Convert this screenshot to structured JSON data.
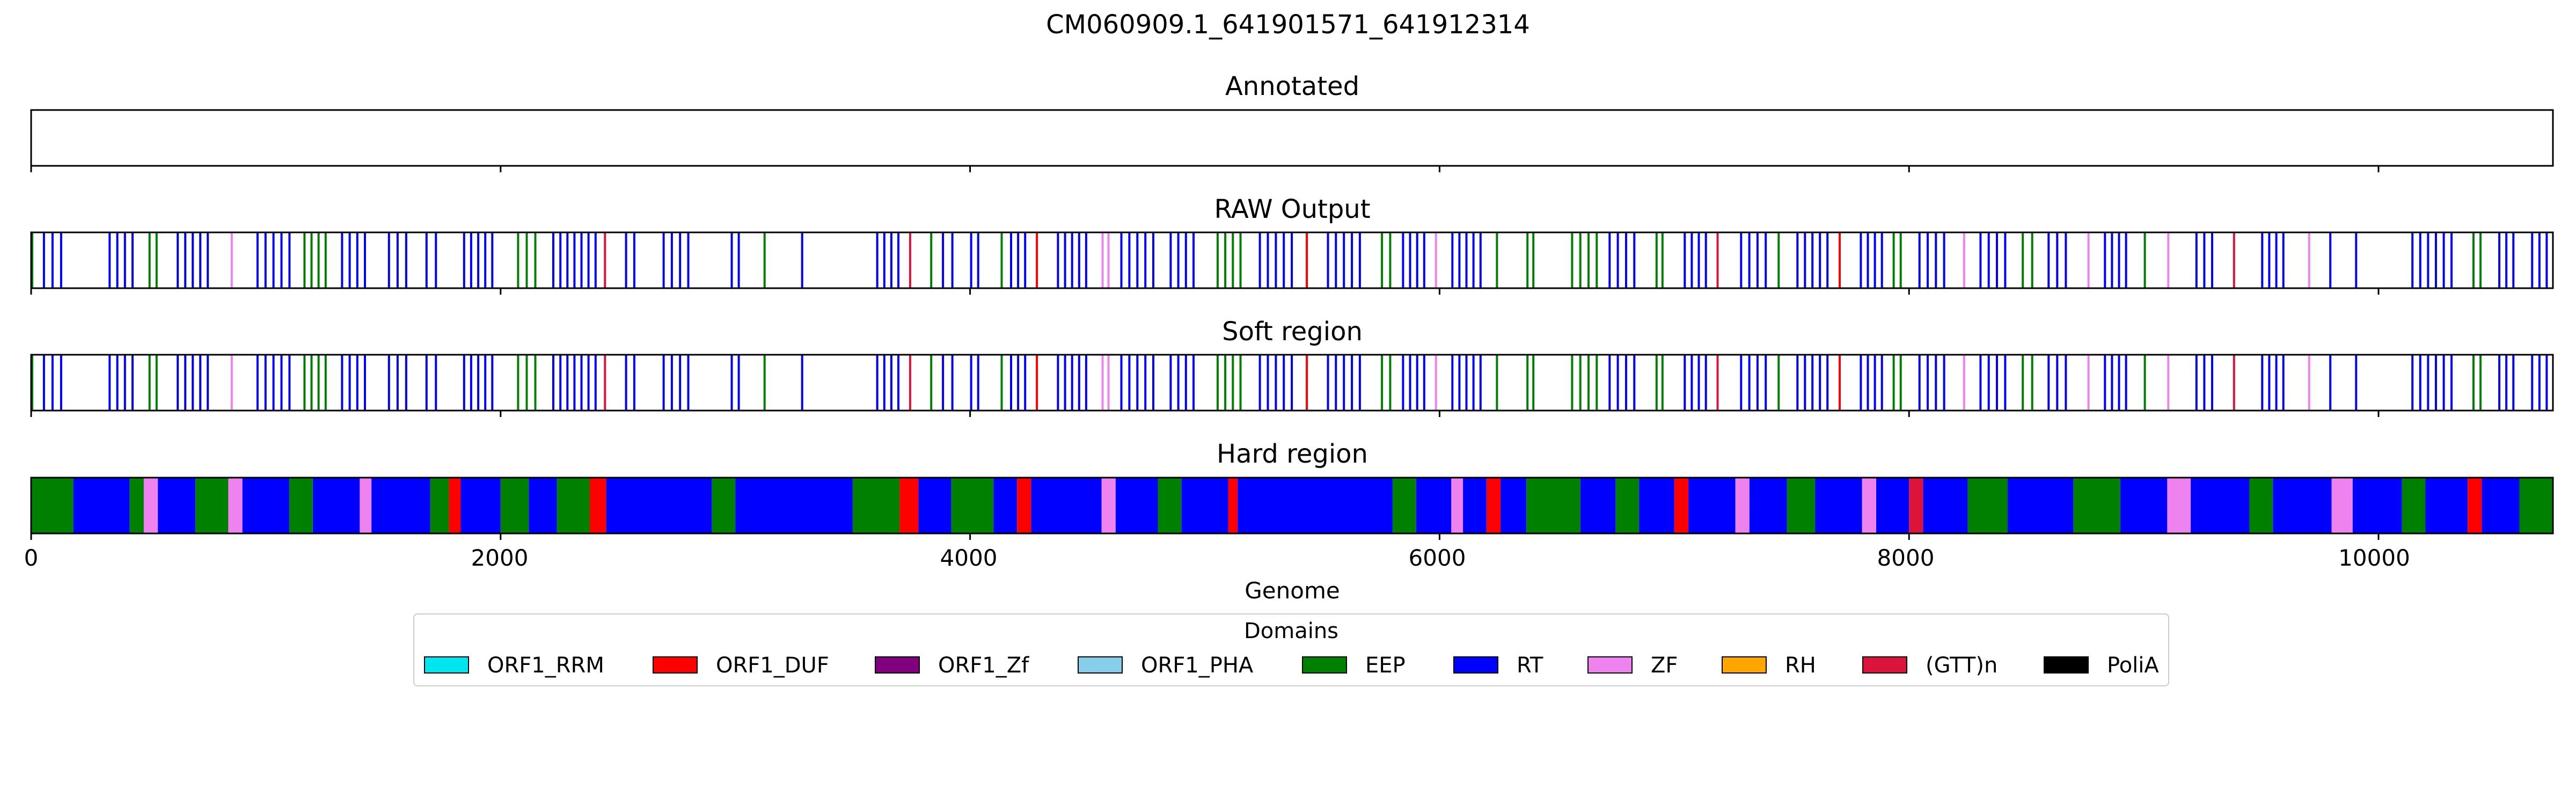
{
  "figure": {
    "title": "CM060909.1_641901571_641912314"
  },
  "colors": {
    "ORF1_RRM": "#00e5ee",
    "ORF1_DUF": "#ff0000",
    "ORF1_Zf": "#800080",
    "ORF1_PHA": "#87ceeb",
    "EEP": "#008000",
    "RT": "#0000ff",
    "ZF": "#ee82ee",
    "RH": "#ffa500",
    "(GTT)n": "#dc143c",
    "PoliA": "#000000"
  },
  "chart_data": {
    "type": "genome-track",
    "xlabel": "Genome",
    "xlim": [
      0,
      10743
    ],
    "xticks": [
      0,
      2000,
      4000,
      6000,
      8000,
      10000
    ],
    "panels": [
      {
        "title": "Annotated",
        "style": "sparse",
        "segments": []
      },
      {
        "title": "RAW Output",
        "style": "sparse",
        "segments": [
          [
            0,
            30,
            "EEP"
          ],
          [
            50,
            160,
            "RT"
          ],
          [
            330,
            460,
            "RT"
          ],
          [
            500,
            560,
            "EEP"
          ],
          [
            620,
            780,
            "RT"
          ],
          [
            850,
            880,
            "ZF"
          ],
          [
            960,
            1130,
            "RT"
          ],
          [
            1160,
            1280,
            "EEP"
          ],
          [
            1320,
            1450,
            "RT"
          ],
          [
            1520,
            1630,
            "RT"
          ],
          [
            1680,
            1760,
            "RT"
          ],
          [
            1840,
            1990,
            "RT"
          ],
          [
            2070,
            2180,
            "EEP"
          ],
          [
            2220,
            2430,
            "RT"
          ],
          [
            2440,
            2470,
            "(GTT)n"
          ],
          [
            2530,
            2600,
            "RT"
          ],
          [
            2690,
            2830,
            "RT"
          ],
          [
            2980,
            3040,
            "RT"
          ],
          [
            3120,
            3160,
            "EEP"
          ],
          [
            3280,
            3320,
            "RT"
          ],
          [
            3600,
            3720,
            "RT"
          ],
          [
            3740,
            3780,
            "(GTT)n"
          ],
          [
            3830,
            3870,
            "EEP"
          ],
          [
            3880,
            3960,
            "RT"
          ],
          [
            4000,
            4060,
            "RT"
          ],
          [
            4130,
            4160,
            "EEP"
          ],
          [
            4170,
            4260,
            "RT"
          ],
          [
            4280,
            4320,
            "ORF1_DUF"
          ],
          [
            4370,
            4520,
            "RT"
          ],
          [
            4560,
            4610,
            "ZF"
          ],
          [
            4640,
            4810,
            "RT"
          ],
          [
            4850,
            4980,
            "RT"
          ],
          [
            5050,
            5180,
            "EEP"
          ],
          [
            5230,
            5400,
            "RT"
          ],
          [
            5430,
            5470,
            "ORF1_DUF"
          ],
          [
            5520,
            5690,
            "RT"
          ],
          [
            5750,
            5820,
            "EEP"
          ],
          [
            5840,
            5960,
            "RT"
          ],
          [
            5980,
            6020,
            "ZF"
          ],
          [
            6050,
            6200,
            "RT"
          ],
          [
            6240,
            6280,
            "EEP"
          ],
          [
            6370,
            6420,
            "EEP"
          ],
          [
            6560,
            6700,
            "EEP"
          ],
          [
            6720,
            6860,
            "RT"
          ],
          [
            6920,
            6970,
            "EEP"
          ],
          [
            7040,
            7160,
            "RT"
          ],
          [
            7180,
            7220,
            "(GTT)n"
          ],
          [
            7280,
            7420,
            "RT"
          ],
          [
            7440,
            7480,
            "EEP"
          ],
          [
            7520,
            7680,
            "RT"
          ],
          [
            7700,
            7740,
            "ORF1_DUF"
          ],
          [
            7790,
            7910,
            "RT"
          ],
          [
            7930,
            7990,
            "EEP"
          ],
          [
            8040,
            8180,
            "RT"
          ],
          [
            8230,
            8260,
            "ZF"
          ],
          [
            8300,
            8440,
            "RT"
          ],
          [
            8480,
            8560,
            "EEP"
          ],
          [
            8590,
            8700,
            "RT"
          ],
          [
            8760,
            8800,
            "ZF"
          ],
          [
            8830,
            8950,
            "RT"
          ],
          [
            9000,
            9030,
            "EEP"
          ],
          [
            9100,
            9140,
            "ZF"
          ],
          [
            9220,
            9320,
            "RT"
          ],
          [
            9380,
            9420,
            "(GTT)n"
          ],
          [
            9500,
            9620,
            "RT"
          ],
          [
            9700,
            9730,
            "ZF"
          ],
          [
            9790,
            9830,
            "RT"
          ],
          [
            9900,
            9930,
            "RT"
          ],
          [
            10140,
            10340,
            "RT"
          ],
          [
            10400,
            10460,
            "EEP"
          ],
          [
            10510,
            10600,
            "RT"
          ],
          [
            10650,
            10743,
            "RT"
          ]
        ]
      },
      {
        "title": "Soft region",
        "style": "sparse",
        "segments": [
          [
            0,
            30,
            "EEP"
          ],
          [
            50,
            160,
            "RT"
          ],
          [
            330,
            460,
            "RT"
          ],
          [
            500,
            560,
            "EEP"
          ],
          [
            620,
            780,
            "RT"
          ],
          [
            850,
            880,
            "ZF"
          ],
          [
            960,
            1130,
            "RT"
          ],
          [
            1160,
            1280,
            "EEP"
          ],
          [
            1320,
            1450,
            "RT"
          ],
          [
            1520,
            1630,
            "RT"
          ],
          [
            1680,
            1760,
            "RT"
          ],
          [
            1840,
            1990,
            "RT"
          ],
          [
            2070,
            2180,
            "EEP"
          ],
          [
            2220,
            2430,
            "RT"
          ],
          [
            2440,
            2470,
            "(GTT)n"
          ],
          [
            2530,
            2600,
            "RT"
          ],
          [
            2690,
            2830,
            "RT"
          ],
          [
            2980,
            3040,
            "RT"
          ],
          [
            3120,
            3160,
            "EEP"
          ],
          [
            3280,
            3320,
            "RT"
          ],
          [
            3600,
            3720,
            "RT"
          ],
          [
            3740,
            3780,
            "(GTT)n"
          ],
          [
            3830,
            3870,
            "EEP"
          ],
          [
            3880,
            3960,
            "RT"
          ],
          [
            4000,
            4060,
            "RT"
          ],
          [
            4130,
            4160,
            "EEP"
          ],
          [
            4170,
            4260,
            "RT"
          ],
          [
            4280,
            4320,
            "ORF1_DUF"
          ],
          [
            4370,
            4520,
            "RT"
          ],
          [
            4560,
            4610,
            "ZF"
          ],
          [
            4640,
            4810,
            "RT"
          ],
          [
            4850,
            4980,
            "RT"
          ],
          [
            5050,
            5180,
            "EEP"
          ],
          [
            5230,
            5400,
            "RT"
          ],
          [
            5430,
            5470,
            "ORF1_DUF"
          ],
          [
            5520,
            5690,
            "RT"
          ],
          [
            5750,
            5820,
            "EEP"
          ],
          [
            5840,
            5960,
            "RT"
          ],
          [
            5980,
            6020,
            "ZF"
          ],
          [
            6050,
            6200,
            "RT"
          ],
          [
            6240,
            6280,
            "EEP"
          ],
          [
            6370,
            6420,
            "EEP"
          ],
          [
            6560,
            6700,
            "EEP"
          ],
          [
            6720,
            6860,
            "RT"
          ],
          [
            6920,
            6970,
            "EEP"
          ],
          [
            7040,
            7160,
            "RT"
          ],
          [
            7180,
            7220,
            "(GTT)n"
          ],
          [
            7280,
            7420,
            "RT"
          ],
          [
            7440,
            7480,
            "EEP"
          ],
          [
            7520,
            7680,
            "RT"
          ],
          [
            7700,
            7740,
            "ORF1_DUF"
          ],
          [
            7790,
            7910,
            "RT"
          ],
          [
            7930,
            7990,
            "EEP"
          ],
          [
            8040,
            8180,
            "RT"
          ],
          [
            8230,
            8260,
            "ZF"
          ],
          [
            8300,
            8440,
            "RT"
          ],
          [
            8480,
            8560,
            "EEP"
          ],
          [
            8590,
            8700,
            "RT"
          ],
          [
            8760,
            8800,
            "ZF"
          ],
          [
            8830,
            8950,
            "RT"
          ],
          [
            9000,
            9030,
            "EEP"
          ],
          [
            9100,
            9140,
            "ZF"
          ],
          [
            9220,
            9320,
            "RT"
          ],
          [
            9380,
            9420,
            "(GTT)n"
          ],
          [
            9500,
            9620,
            "RT"
          ],
          [
            9700,
            9730,
            "ZF"
          ],
          [
            9790,
            9830,
            "RT"
          ],
          [
            9900,
            9930,
            "RT"
          ],
          [
            10140,
            10340,
            "RT"
          ],
          [
            10400,
            10460,
            "EEP"
          ],
          [
            10510,
            10600,
            "RT"
          ],
          [
            10650,
            10743,
            "RT"
          ]
        ]
      },
      {
        "title": "Hard region",
        "style": "dense",
        "segments": [
          [
            0,
            180,
            "EEP"
          ],
          [
            180,
            420,
            "RT"
          ],
          [
            420,
            480,
            "EEP"
          ],
          [
            480,
            540,
            "ZF"
          ],
          [
            540,
            700,
            "RT"
          ],
          [
            700,
            840,
            "EEP"
          ],
          [
            840,
            900,
            "ZF"
          ],
          [
            900,
            1100,
            "RT"
          ],
          [
            1100,
            1200,
            "EEP"
          ],
          [
            1200,
            1400,
            "RT"
          ],
          [
            1400,
            1450,
            "ZF"
          ],
          [
            1450,
            1700,
            "RT"
          ],
          [
            1700,
            1780,
            "EEP"
          ],
          [
            1780,
            1830,
            "ORF1_DUF"
          ],
          [
            1830,
            2000,
            "RT"
          ],
          [
            2000,
            2120,
            "EEP"
          ],
          [
            2120,
            2240,
            "RT"
          ],
          [
            2240,
            2380,
            "EEP"
          ],
          [
            2380,
            2450,
            "ORF1_DUF"
          ],
          [
            2450,
            2900,
            "RT"
          ],
          [
            2900,
            3000,
            "EEP"
          ],
          [
            3000,
            3500,
            "RT"
          ],
          [
            3500,
            3700,
            "EEP"
          ],
          [
            3700,
            3780,
            "ORF1_DUF"
          ],
          [
            3780,
            3920,
            "RT"
          ],
          [
            3920,
            4100,
            "EEP"
          ],
          [
            4100,
            4200,
            "RT"
          ],
          [
            4200,
            4260,
            "ORF1_DUF"
          ],
          [
            4260,
            4560,
            "RT"
          ],
          [
            4560,
            4620,
            "ZF"
          ],
          [
            4620,
            4800,
            "RT"
          ],
          [
            4800,
            4900,
            "EEP"
          ],
          [
            4900,
            5100,
            "RT"
          ],
          [
            5100,
            5140,
            "ORF1_DUF"
          ],
          [
            5140,
            5800,
            "RT"
          ],
          [
            5800,
            5900,
            "EEP"
          ],
          [
            5900,
            6050,
            "RT"
          ],
          [
            6050,
            6100,
            "ZF"
          ],
          [
            6100,
            6200,
            "RT"
          ],
          [
            6200,
            6260,
            "ORF1_DUF"
          ],
          [
            6260,
            6370,
            "RT"
          ],
          [
            6370,
            6600,
            "EEP"
          ],
          [
            6600,
            6750,
            "RT"
          ],
          [
            6750,
            6850,
            "EEP"
          ],
          [
            6850,
            7000,
            "RT"
          ],
          [
            7000,
            7060,
            "ORF1_DUF"
          ],
          [
            7060,
            7260,
            "RT"
          ],
          [
            7260,
            7320,
            "ZF"
          ],
          [
            7320,
            7480,
            "RT"
          ],
          [
            7480,
            7600,
            "EEP"
          ],
          [
            7600,
            7800,
            "RT"
          ],
          [
            7800,
            7860,
            "ZF"
          ],
          [
            7860,
            8000,
            "RT"
          ],
          [
            8000,
            8060,
            "(GTT)n"
          ],
          [
            8060,
            8250,
            "RT"
          ],
          [
            8250,
            8420,
            "EEP"
          ],
          [
            8420,
            8700,
            "RT"
          ],
          [
            8700,
            8900,
            "EEP"
          ],
          [
            8900,
            9100,
            "RT"
          ],
          [
            9100,
            9200,
            "ZF"
          ],
          [
            9200,
            9450,
            "RT"
          ],
          [
            9450,
            9550,
            "EEP"
          ],
          [
            9550,
            9800,
            "RT"
          ],
          [
            9800,
            9890,
            "ZF"
          ],
          [
            9890,
            10100,
            "RT"
          ],
          [
            10100,
            10200,
            "EEP"
          ],
          [
            10200,
            10380,
            "RT"
          ],
          [
            10380,
            10440,
            "ORF1_DUF"
          ],
          [
            10440,
            10600,
            "RT"
          ],
          [
            10600,
            10743,
            "EEP"
          ]
        ]
      }
    ],
    "legend": {
      "title": "Domains",
      "placement": "bottom-center",
      "entries": [
        "ORF1_RRM",
        "ORF1_DUF",
        "ORF1_Zf",
        "ORF1_PHA",
        "EEP",
        "RT",
        "ZF",
        "RH",
        "(GTT)n",
        "PoliA"
      ]
    }
  }
}
